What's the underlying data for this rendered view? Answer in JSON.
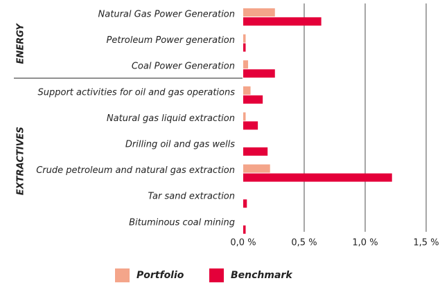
{
  "chart_data": {
    "type": "hbar",
    "categories": [
      "Natural Gas Power Generation",
      "Petroleum Power generation",
      "Coal Power Generation",
      "Support activities for oil and gas operations",
      "Natural gas liquid extraction",
      "Drilling oil and gas wells",
      "Crude petroleum and natural gas extraction",
      "Tar sand extraction",
      "Bituminous coal mining"
    ],
    "groups": [
      {
        "name": "ENERGY",
        "count": 3
      },
      {
        "name": "EXTRACTIVES",
        "count": 6
      }
    ],
    "series": [
      {
        "name": "Portfolio",
        "color": "#f4a58a",
        "values": [
          0.26,
          0.02,
          0.04,
          0.06,
          0.02,
          0,
          0.22,
          0,
          0
        ]
      },
      {
        "name": "Benchmark",
        "color": "#e4003a",
        "values": [
          0.64,
          0.02,
          0.26,
          0.16,
          0.12,
          0.2,
          1.22,
          0.03,
          0.02
        ]
      }
    ],
    "xlim": [
      0,
      1.5
    ],
    "xticks": [
      {
        "value": 0,
        "label": "0,0 %"
      },
      {
        "value": 0.5,
        "label": "0,5 %"
      },
      {
        "value": 1,
        "label": "1,0 %"
      },
      {
        "value": 1.5,
        "label": "1,5 %"
      }
    ],
    "grid": true,
    "legend": "bottom"
  }
}
